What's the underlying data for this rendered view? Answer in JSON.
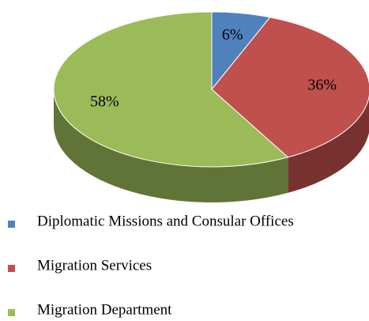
{
  "chart_data": {
    "type": "pie",
    "categories": [
      "Diplomatic Missions and Consular Offices",
      "Migration Services",
      "Migration Department"
    ],
    "values": [
      6,
      36,
      58
    ],
    "value_labels": [
      "6%",
      "36%",
      "58%"
    ],
    "colors": [
      "#4f81bd",
      "#c0504d",
      "#9bbb59"
    ],
    "legend": "bottom"
  }
}
